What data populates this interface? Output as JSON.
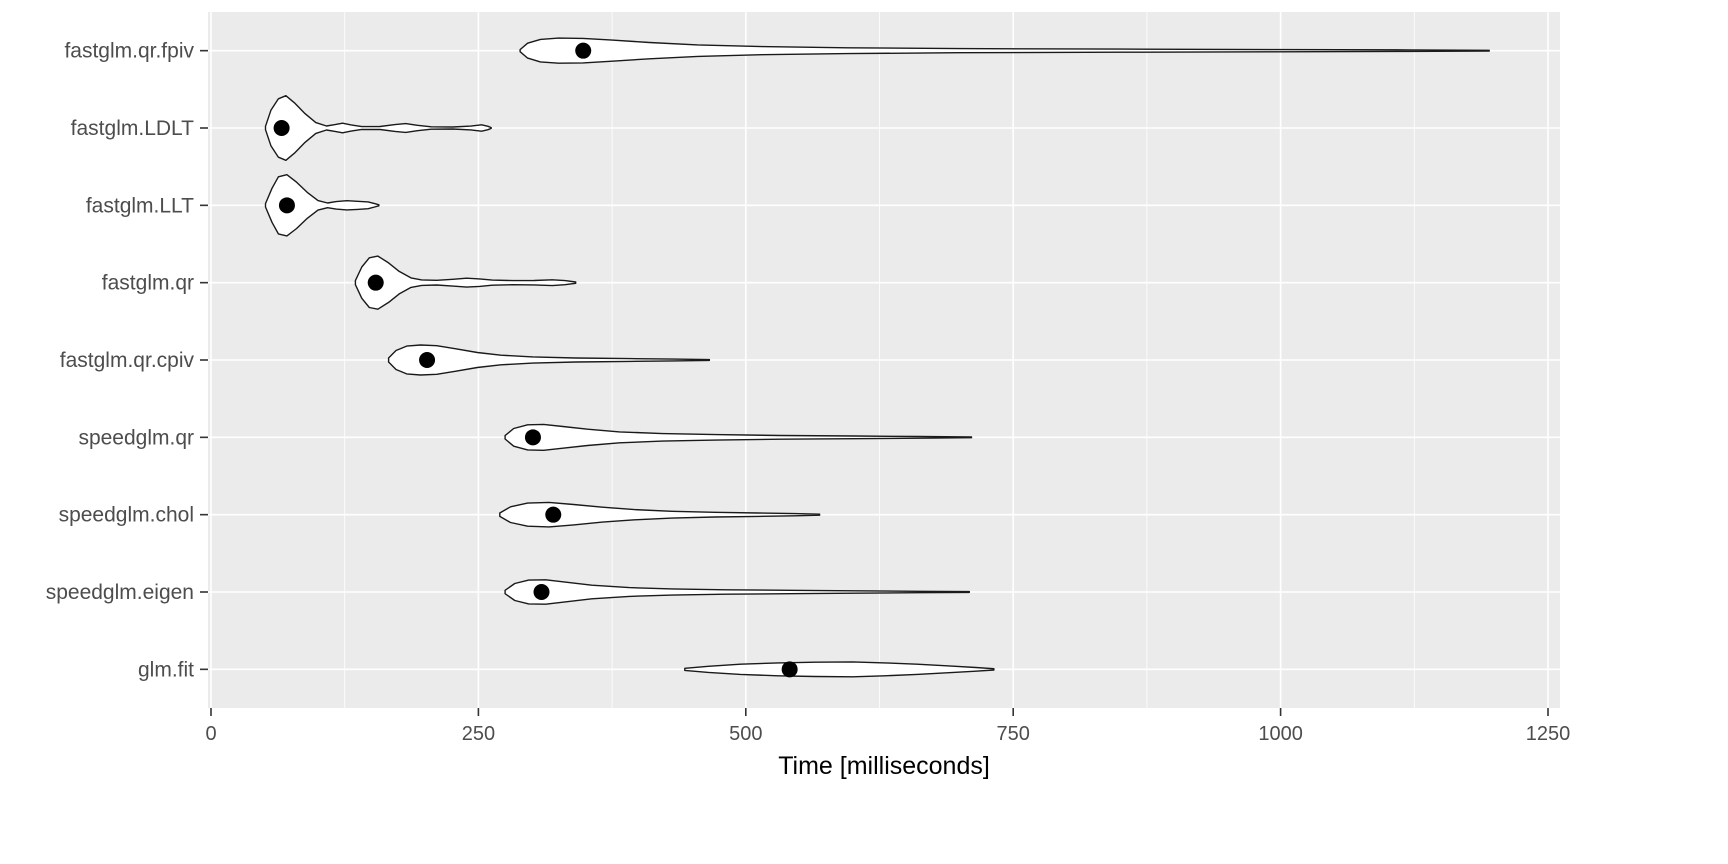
{
  "chart_data": {
    "type": "violin",
    "orientation": "horizontal",
    "title": "",
    "xlabel": "Time [milliseconds]",
    "ylabel": "",
    "xlim": [
      0,
      1250
    ],
    "xticks": [
      0,
      250,
      500,
      750,
      1000,
      1250
    ],
    "xticks_minor": [
      125,
      375,
      625,
      875,
      1125
    ],
    "grid": true,
    "legend": "none",
    "categories": [
      "fastglm.qr.fpiv",
      "fastglm.LDLT",
      "fastglm.LLT",
      "fastglm.qr",
      "fastglm.qr.cpiv",
      "speedglm.qr",
      "speedglm.chol",
      "speedglm.eigen",
      "glm.fit"
    ],
    "series": [
      {
        "name": "fastglm.qr.fpiv",
        "median": 348,
        "min": 289,
        "max": 1195,
        "profile": [
          [
            289,
            0.03
          ],
          [
            296,
            0.22
          ],
          [
            308,
            0.33
          ],
          [
            325,
            0.37
          ],
          [
            348,
            0.36
          ],
          [
            375,
            0.31
          ],
          [
            410,
            0.24
          ],
          [
            455,
            0.17
          ],
          [
            515,
            0.12
          ],
          [
            595,
            0.085
          ],
          [
            700,
            0.06
          ],
          [
            850,
            0.045
          ],
          [
            1000,
            0.032
          ],
          [
            1120,
            0.022
          ],
          [
            1195,
            0.012
          ]
        ]
      },
      {
        "name": "fastglm.LDLT",
        "median": 66,
        "min": 51,
        "max": 262,
        "profile": [
          [
            51,
            0.05
          ],
          [
            56,
            0.52
          ],
          [
            63,
            0.86
          ],
          [
            70,
            0.95
          ],
          [
            78,
            0.74
          ],
          [
            88,
            0.42
          ],
          [
            98,
            0.16
          ],
          [
            108,
            0.06
          ],
          [
            116,
            0.1
          ],
          [
            123,
            0.14
          ],
          [
            131,
            0.09
          ],
          [
            141,
            0.04
          ],
          [
            158,
            0.045
          ],
          [
            172,
            0.1
          ],
          [
            182,
            0.13
          ],
          [
            193,
            0.08
          ],
          [
            206,
            0.035
          ],
          [
            226,
            0.03
          ],
          [
            243,
            0.055
          ],
          [
            253,
            0.095
          ],
          [
            259,
            0.05
          ],
          [
            262,
            0.012
          ]
        ]
      },
      {
        "name": "fastglm.LLT",
        "median": 71,
        "min": 51,
        "max": 157,
        "profile": [
          [
            51,
            0.05
          ],
          [
            57,
            0.5
          ],
          [
            63,
            0.84
          ],
          [
            71,
            0.9
          ],
          [
            80,
            0.68
          ],
          [
            90,
            0.38
          ],
          [
            100,
            0.14
          ],
          [
            109,
            0.07
          ],
          [
            117,
            0.11
          ],
          [
            127,
            0.135
          ],
          [
            137,
            0.12
          ],
          [
            147,
            0.1
          ],
          [
            153,
            0.05
          ],
          [
            157,
            0.015
          ]
        ]
      },
      {
        "name": "fastglm.qr",
        "median": 154,
        "min": 135,
        "max": 341,
        "profile": [
          [
            135,
            0.06
          ],
          [
            141,
            0.46
          ],
          [
            148,
            0.73
          ],
          [
            156,
            0.78
          ],
          [
            166,
            0.58
          ],
          [
            176,
            0.33
          ],
          [
            187,
            0.14
          ],
          [
            197,
            0.08
          ],
          [
            211,
            0.07
          ],
          [
            226,
            0.1
          ],
          [
            239,
            0.13
          ],
          [
            251,
            0.11
          ],
          [
            263,
            0.075
          ],
          [
            282,
            0.06
          ],
          [
            302,
            0.065
          ],
          [
            319,
            0.085
          ],
          [
            331,
            0.06
          ],
          [
            341,
            0.02
          ]
        ]
      },
      {
        "name": "fastglm.qr.cpiv",
        "median": 202,
        "min": 166,
        "max": 466,
        "profile": [
          [
            166,
            0.06
          ],
          [
            173,
            0.28
          ],
          [
            183,
            0.41
          ],
          [
            196,
            0.44
          ],
          [
            211,
            0.42
          ],
          [
            229,
            0.33
          ],
          [
            249,
            0.22
          ],
          [
            271,
            0.14
          ],
          [
            301,
            0.09
          ],
          [
            341,
            0.06
          ],
          [
            391,
            0.04
          ],
          [
            432,
            0.025
          ],
          [
            466,
            0.012
          ]
        ]
      },
      {
        "name": "speedglm.qr",
        "median": 301,
        "min": 275,
        "max": 711,
        "profile": [
          [
            275,
            0.05
          ],
          [
            283,
            0.26
          ],
          [
            296,
            0.37
          ],
          [
            311,
            0.38
          ],
          [
            329,
            0.32
          ],
          [
            352,
            0.24
          ],
          [
            382,
            0.16
          ],
          [
            422,
            0.11
          ],
          [
            472,
            0.08
          ],
          [
            532,
            0.055
          ],
          [
            602,
            0.04
          ],
          [
            662,
            0.025
          ],
          [
            711,
            0.012
          ]
        ]
      },
      {
        "name": "speedglm.chol",
        "median": 320,
        "min": 270,
        "max": 569,
        "profile": [
          [
            270,
            0.05
          ],
          [
            280,
            0.23
          ],
          [
            296,
            0.34
          ],
          [
            316,
            0.36
          ],
          [
            339,
            0.3
          ],
          [
            366,
            0.22
          ],
          [
            396,
            0.15
          ],
          [
            431,
            0.1
          ],
          [
            471,
            0.07
          ],
          [
            511,
            0.05
          ],
          [
            546,
            0.032
          ],
          [
            569,
            0.015
          ]
        ]
      },
      {
        "name": "speedglm.eigen",
        "median": 309,
        "min": 275,
        "max": 709,
        "profile": [
          [
            275,
            0.05
          ],
          [
            284,
            0.25
          ],
          [
            297,
            0.35
          ],
          [
            313,
            0.36
          ],
          [
            331,
            0.29
          ],
          [
            356,
            0.2
          ],
          [
            391,
            0.13
          ],
          [
            431,
            0.09
          ],
          [
            481,
            0.066
          ],
          [
            541,
            0.05
          ],
          [
            601,
            0.036
          ],
          [
            661,
            0.022
          ],
          [
            709,
            0.012
          ]
        ]
      },
      {
        "name": "glm.fit",
        "median": 541,
        "min": 443,
        "max": 732,
        "profile": [
          [
            443,
            0.03
          ],
          [
            465,
            0.09
          ],
          [
            495,
            0.15
          ],
          [
            530,
            0.19
          ],
          [
            565,
            0.21
          ],
          [
            600,
            0.22
          ],
          [
            630,
            0.19
          ],
          [
            660,
            0.15
          ],
          [
            690,
            0.1
          ],
          [
            715,
            0.055
          ],
          [
            732,
            0.02
          ]
        ]
      }
    ],
    "style": {
      "figure_bg": "#FFFFFF",
      "panel_bg": "#EBEBEB",
      "grid_major": "#FFFFFF",
      "grid_minor": "#FFFFFF",
      "violin_fill": "#FFFFFF",
      "violin_stroke": "#1A1A1A",
      "median_dot": "#000000",
      "axis_text": "#4D4D4D",
      "axis_title": "#000000",
      "tick_mark": "#333333"
    }
  }
}
